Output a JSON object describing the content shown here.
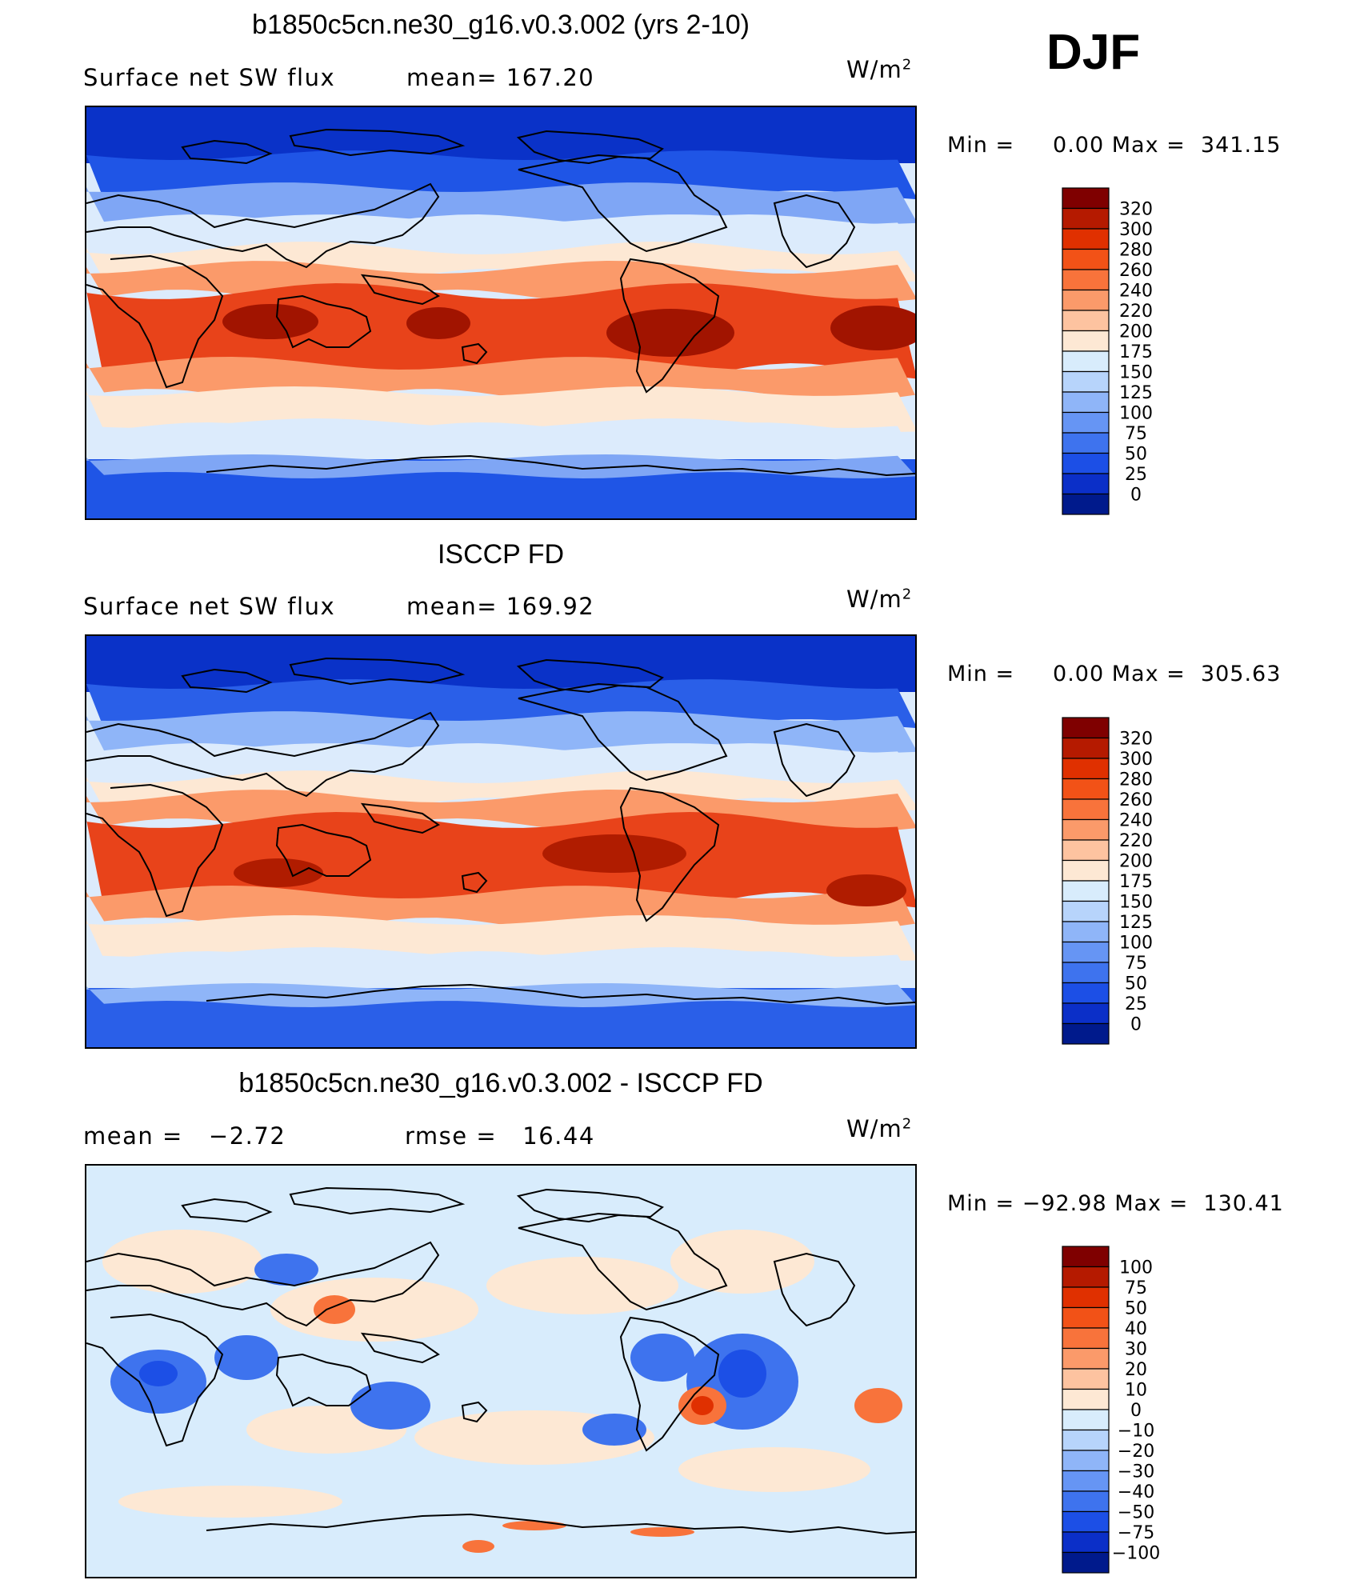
{
  "season": "DJF",
  "panels": [
    {
      "title": "b1850c5cn.ne30_g16.v0.3.002 (yrs 2-10)",
      "left_label": "Surface net SW flux",
      "mid_label": "mean= 167.20",
      "units_base": "W/m",
      "units_exp": "2",
      "minmax": "Min =     0.00 Max =  341.15",
      "colorbar": {
        "ticks": [
          "320",
          "300",
          "280",
          "260",
          "240",
          "220",
          "200",
          "175",
          "150",
          "125",
          "100",
          "75",
          "50",
          "25",
          "0"
        ],
        "colors": [
          "#7f0000",
          "#b51a00",
          "#e03000",
          "#f25217",
          "#f8733b",
          "#fb9a6a",
          "#fdc3a0",
          "#fde8d4",
          "#d8ecfc",
          "#b7d4fb",
          "#8fb5f8",
          "#6695f4",
          "#3e73ee",
          "#1c4fe6",
          "#0b2fc8",
          "#001a8c"
        ]
      },
      "map_colors": {
        "polar": "#0a32c8",
        "midlat": "#1f55e6",
        "cool": "#7fa6f5",
        "pale": "#dcebfc",
        "neutral": "#fde8d4",
        "warm": "#fb9a6a",
        "hot": "#e8431a",
        "core": "#a11400"
      }
    },
    {
      "title": "ISCCP FD",
      "left_label": "Surface net SW flux",
      "mid_label": "mean= 169.92",
      "units_base": "W/m",
      "units_exp": "2",
      "minmax": "Min =     0.00 Max =  305.63",
      "colorbar": {
        "ticks": [
          "320",
          "300",
          "280",
          "260",
          "240",
          "220",
          "200",
          "175",
          "150",
          "125",
          "100",
          "75",
          "50",
          "25",
          "0"
        ],
        "colors": [
          "#7f0000",
          "#b51a00",
          "#e03000",
          "#f25217",
          "#f8733b",
          "#fb9a6a",
          "#fdc3a0",
          "#fde8d4",
          "#d8ecfc",
          "#b7d4fb",
          "#8fb5f8",
          "#6695f4",
          "#3e73ee",
          "#1c4fe6",
          "#0b2fc8",
          "#001a8c"
        ]
      },
      "map_colors": {
        "polar": "#0a32c8",
        "midlat": "#2a5fe8",
        "cool": "#8fb5f8",
        "pale": "#dcebfc",
        "neutral": "#fde8d4",
        "warm": "#fb9a6a",
        "hot": "#e8431a",
        "core": "#b01c00"
      }
    },
    {
      "title": "b1850c5cn.ne30_g16.v0.3.002 - ISCCP FD",
      "left_label": "mean =   −2.72",
      "mid_label": "rmse =   16.44",
      "units_base": "W/m",
      "units_exp": "2",
      "minmax": "Min = −92.98 Max =  130.41",
      "colorbar": {
        "ticks": [
          "100",
          "75",
          "50",
          "40",
          "30",
          "20",
          "10",
          "0",
          "−10",
          "−20",
          "−30",
          "−40",
          "−50",
          "−75",
          "−100"
        ],
        "colors": [
          "#7f0000",
          "#b51a00",
          "#e03000",
          "#f25217",
          "#f8733b",
          "#fb9a6a",
          "#fdc3a0",
          "#fde8d4",
          "#d8ecfc",
          "#b7d4fb",
          "#8fb5f8",
          "#6695f4",
          "#3e73ee",
          "#1c4fe6",
          "#0b2fc8",
          "#001a8c"
        ]
      },
      "map_colors": {
        "base": "#d8ecfc",
        "light": "#fde8d4",
        "blue": "#3e73ee",
        "deep": "#1c4fe6",
        "orange": "#f8733b",
        "red": "#e03000"
      }
    }
  ],
  "chart_data": [
    {
      "type": "heatmap",
      "title": "b1850c5cn.ne30_g16.v0.3.002 (yrs 2-10)",
      "subtitle": "Surface net SW flux",
      "units": "W/m2",
      "mean": 167.2,
      "min": 0.0,
      "max": 341.15,
      "contour_levels": [
        0,
        25,
        50,
        75,
        100,
        125,
        150,
        175,
        200,
        220,
        240,
        260,
        280,
        300,
        320
      ]
    },
    {
      "type": "heatmap",
      "title": "ISCCP FD",
      "subtitle": "Surface net SW flux",
      "units": "W/m2",
      "mean": 169.92,
      "min": 0.0,
      "max": 305.63,
      "contour_levels": [
        0,
        25,
        50,
        75,
        100,
        125,
        150,
        175,
        200,
        220,
        240,
        260,
        280,
        300,
        320
      ]
    },
    {
      "type": "heatmap",
      "title": "b1850c5cn.ne30_g16.v0.3.002 - ISCCP FD",
      "units": "W/m2",
      "mean": -2.72,
      "rmse": 16.44,
      "min": -92.98,
      "max": 130.41,
      "contour_levels": [
        -100,
        -75,
        -50,
        -40,
        -30,
        -20,
        -10,
        0,
        10,
        20,
        30,
        40,
        50,
        75,
        100
      ]
    }
  ]
}
